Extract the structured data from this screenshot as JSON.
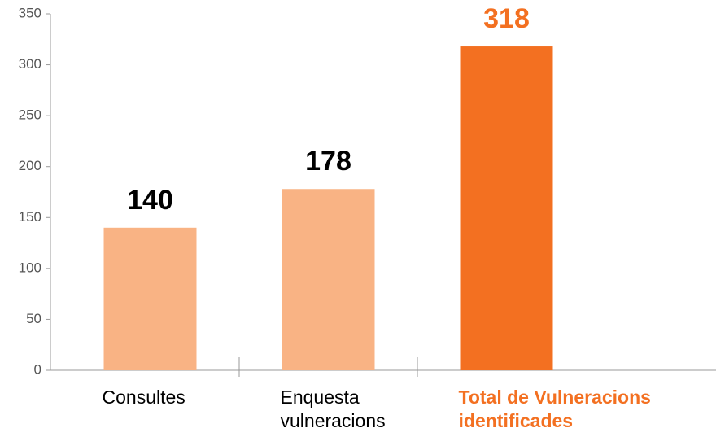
{
  "chart_data": {
    "type": "bar",
    "categories": [
      "Consultes",
      "Enquesta\nvulneracions",
      "Total de Vulneracions\nidentificades"
    ],
    "values": [
      140,
      178,
      318
    ],
    "colors": [
      "#f9b384",
      "#f9b384",
      "#f37021"
    ],
    "label_colors": [
      "#000000",
      "#000000",
      "#f37021"
    ],
    "ylim": [
      0,
      350
    ],
    "yticks": [
      0,
      50,
      100,
      150,
      200,
      250,
      300,
      350
    ]
  }
}
